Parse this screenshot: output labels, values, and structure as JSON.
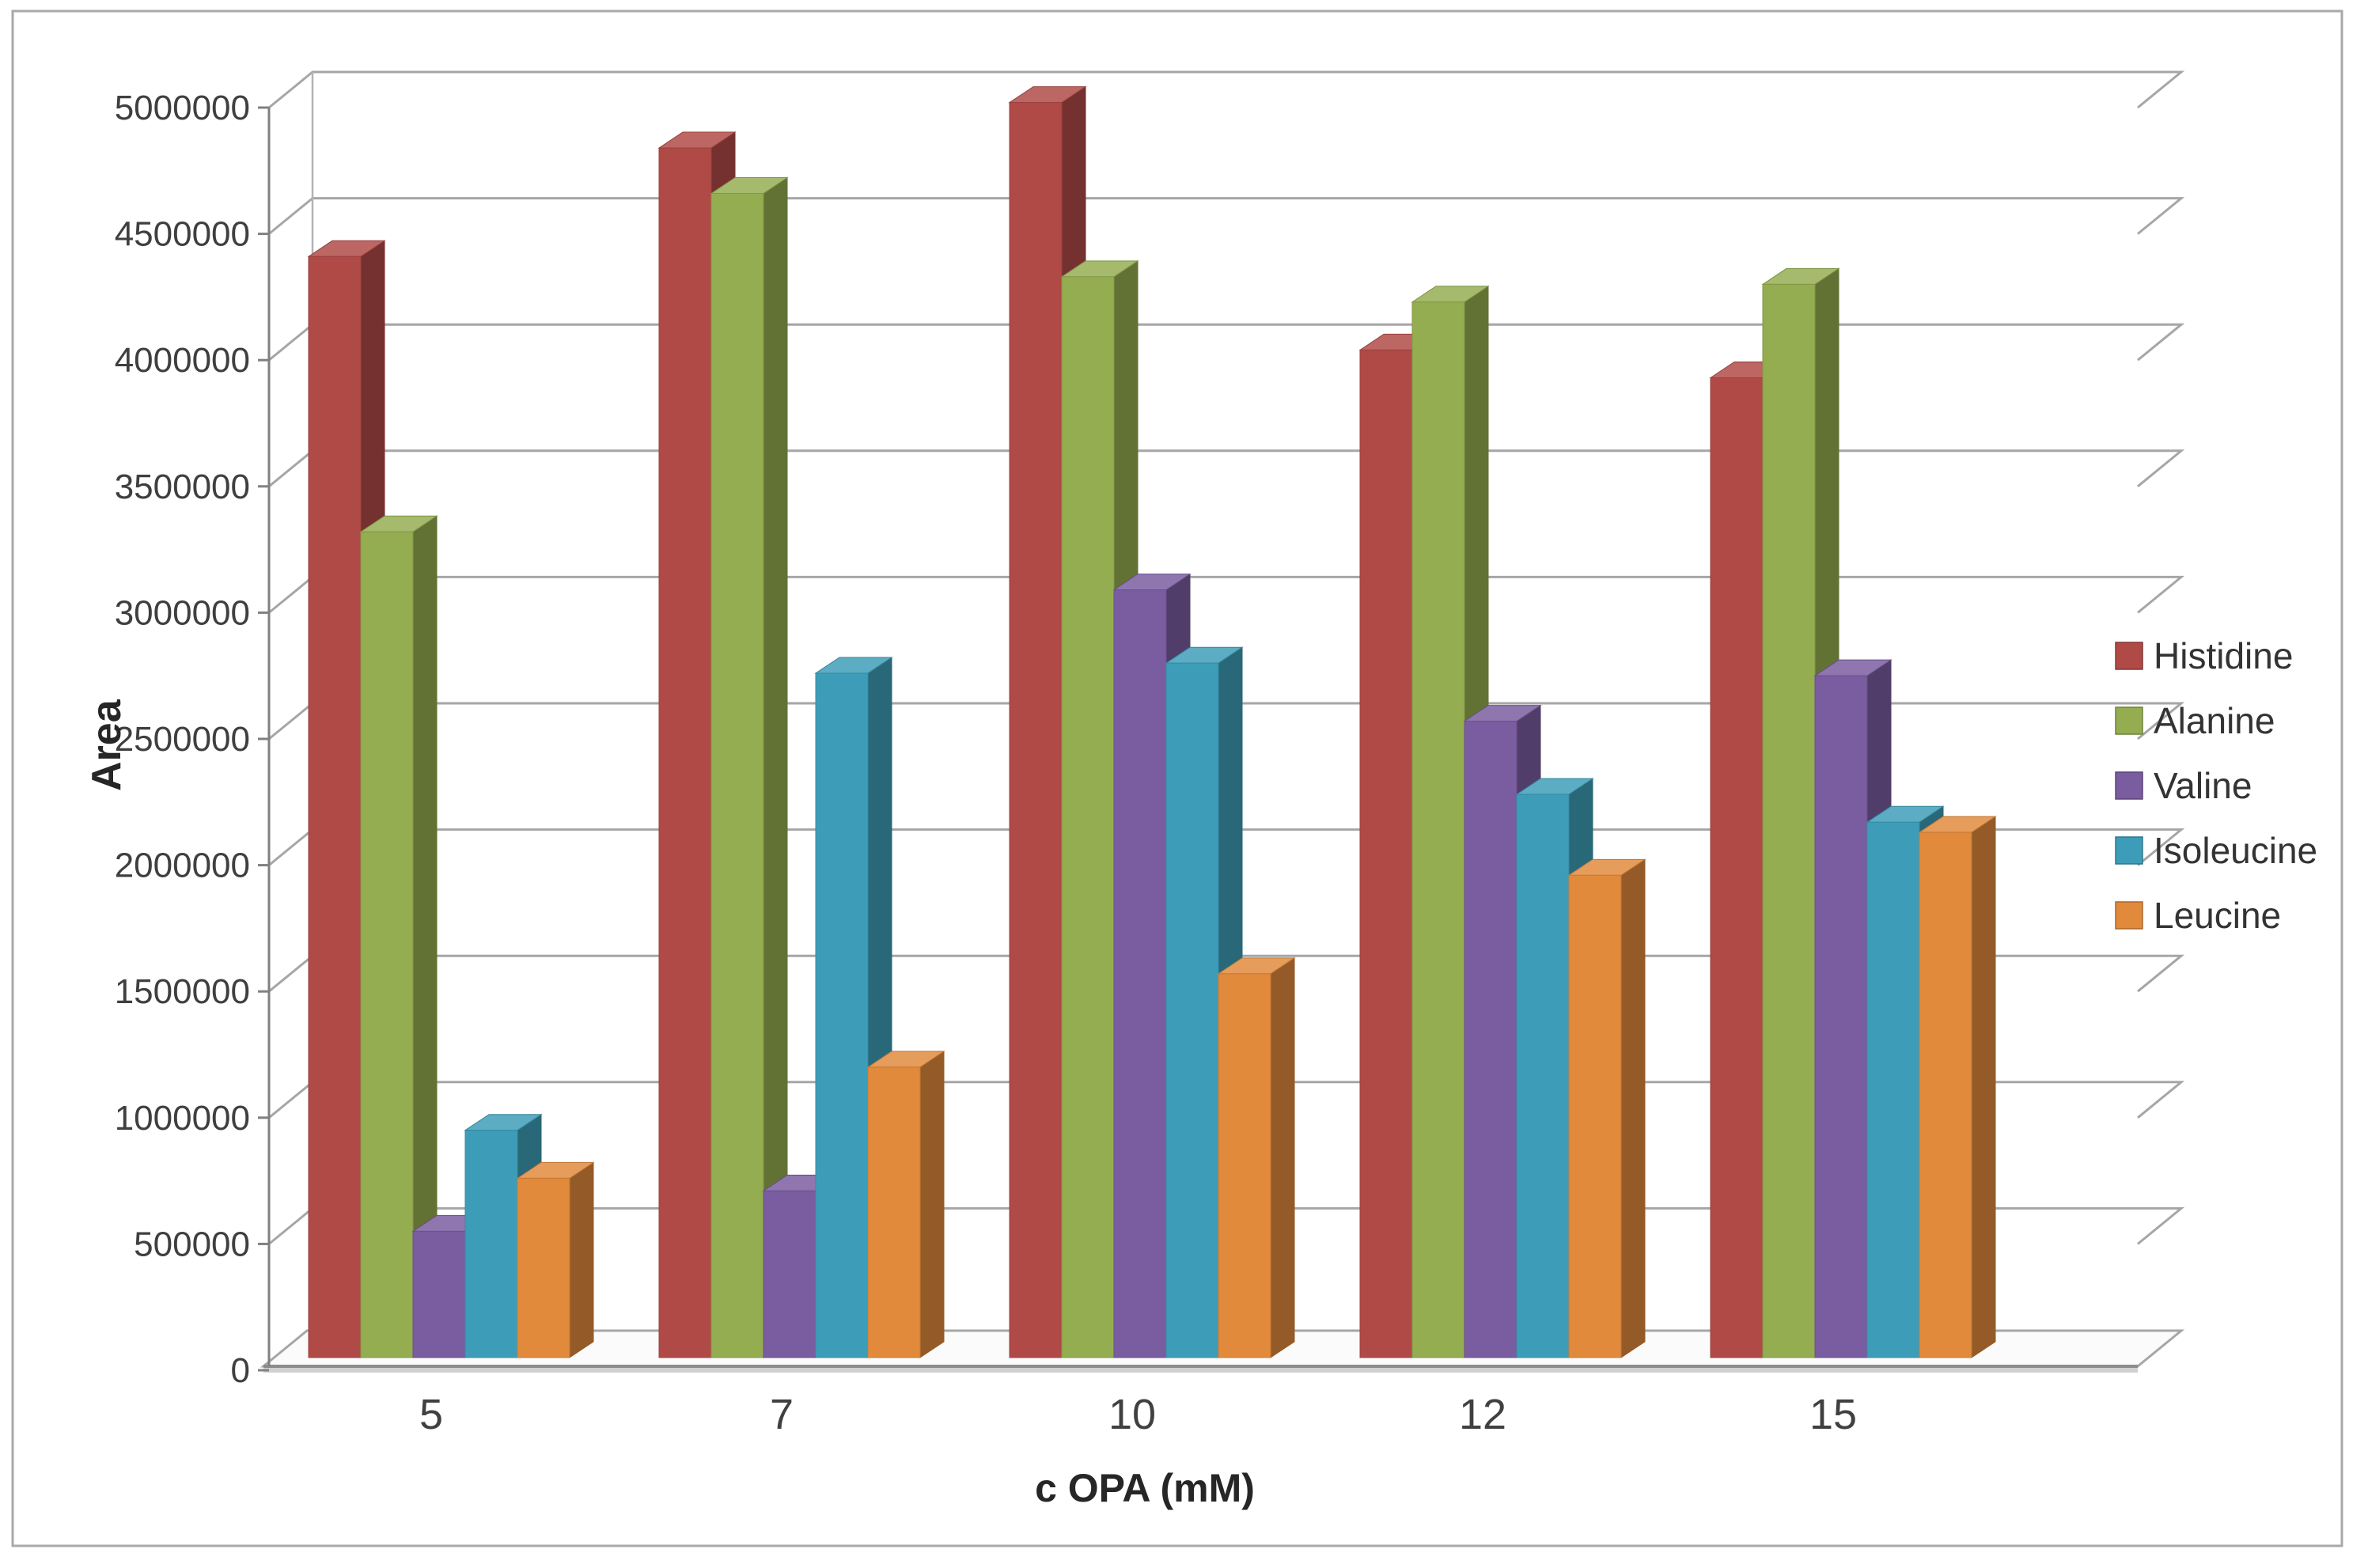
{
  "chart_data": {
    "type": "bar",
    "projection": "3d",
    "title": "",
    "xlabel": "c OPA (mM)",
    "ylabel": "Area",
    "categories": [
      "5",
      "7",
      "10",
      "12",
      "15"
    ],
    "series": [
      {
        "name": "Histidine",
        "color": "#B04A47",
        "values": [
          4360000,
          4790000,
          4970000,
          3990000,
          3880000
        ]
      },
      {
        "name": "Alanine",
        "color": "#94AD50",
        "values": [
          3270000,
          4610000,
          4280000,
          4180000,
          4250000
        ]
      },
      {
        "name": "Valine",
        "color": "#7A5CA0",
        "values": [
          500000,
          660000,
          3040000,
          2520000,
          2700000
        ]
      },
      {
        "name": "Isoleucine",
        "color": "#3D9DB8",
        "values": [
          900000,
          2710000,
          2750000,
          2230000,
          2120000
        ]
      },
      {
        "name": "Leucine",
        "color": "#E18A3C",
        "values": [
          710000,
          1150000,
          1520000,
          1910000,
          2080000
        ]
      }
    ],
    "ylim": [
      0,
      5000000
    ],
    "ytick_step": 500000,
    "ytick_labels": [
      "0",
      "500000",
      "1000000",
      "1500000",
      "2000000",
      "2500000",
      "3000000",
      "3500000",
      "4000000",
      "4500000",
      "5000000"
    ],
    "grid": true,
    "legend_position": "right"
  }
}
